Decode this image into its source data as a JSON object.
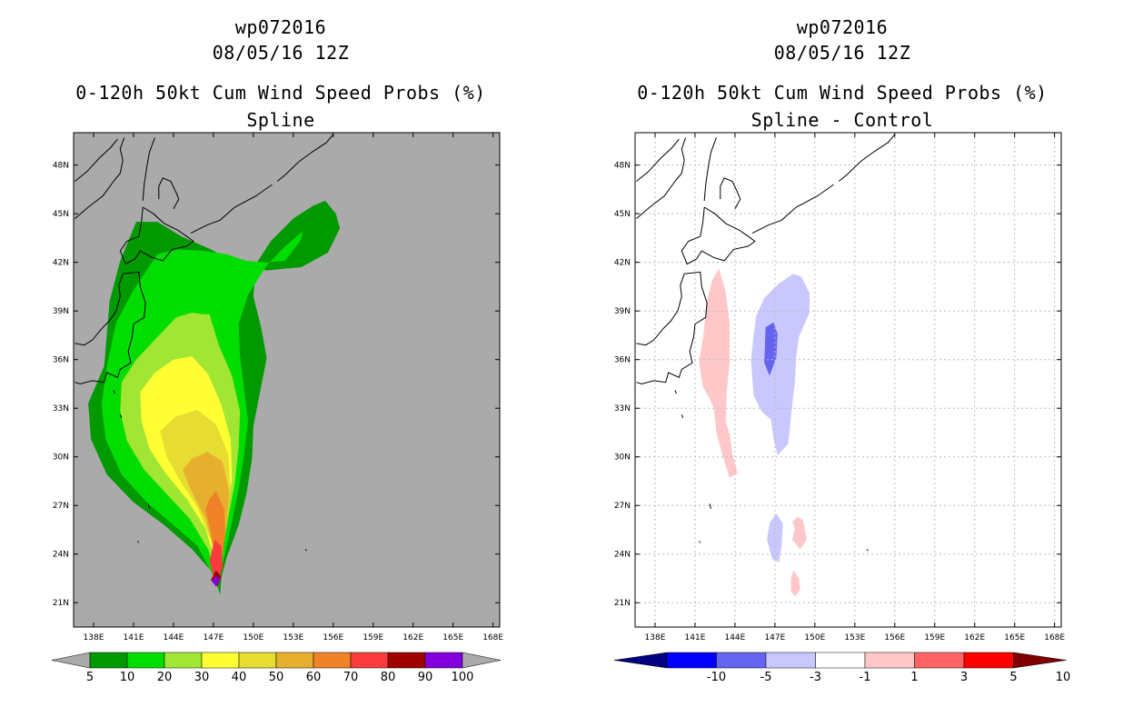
{
  "chart_data": [
    {
      "type": "heatmap",
      "storm_id": "wp072016",
      "datetime": "08/05/16 12Z",
      "title": "0-120h 50kt Cum Wind Speed Probs (%)",
      "subtitle": "Spline",
      "x_ticks": [
        "138E",
        "141E",
        "144E",
        "147E",
        "150E",
        "153E",
        "156E",
        "159E",
        "162E",
        "165E",
        "168E"
      ],
      "y_ticks": [
        "21N",
        "24N",
        "27N",
        "30N",
        "33N",
        "36N",
        "39N",
        "42N",
        "45N",
        "48N"
      ],
      "xlim": [
        136.5,
        168.5
      ],
      "ylim": [
        19.5,
        50
      ],
      "grid": false,
      "background_color": "#aaaaaa",
      "colorbar": {
        "labels": [
          "5",
          "10",
          "20",
          "30",
          "40",
          "50",
          "60",
          "70",
          "80",
          "90",
          "100"
        ],
        "colors": [
          "#009900",
          "#00dd00",
          "#a0e632",
          "#ffff33",
          "#e6dc32",
          "#e6af2d",
          "#f08228",
          "#fa3c3c",
          "#a00000",
          "#8200dc"
        ]
      },
      "contours": [
        {
          "level": 5,
          "color": "#009900",
          "lon": [
            138.8,
            137.6,
            137.8,
            139.0,
            141.0,
            143.3,
            145.4,
            147.0,
            147.5,
            147.6,
            148.0,
            148.9,
            149.5,
            149.9,
            150.0,
            150.5,
            151.0,
            150.6,
            150.0,
            150.2,
            151.3,
            153.0,
            154.5,
            155.4,
            156.2,
            156.5,
            155.6,
            153.6,
            151.0,
            148.8,
            146.8,
            144.6,
            142.8,
            141.2,
            140.0,
            139.2
          ],
          "lat": [
            35.6,
            33.3,
            31.1,
            28.9,
            27.2,
            25.8,
            24.3,
            22.8,
            21.5,
            22.6,
            23.8,
            25.8,
            27.8,
            29.9,
            31.9,
            34.0,
            36.1,
            37.9,
            39.9,
            41.9,
            43.3,
            44.7,
            45.5,
            45.8,
            45.0,
            44.1,
            42.6,
            41.7,
            41.5,
            41.9,
            42.8,
            43.6,
            44.5,
            44.5,
            42.1,
            39.6
          ]
        },
        {
          "level": 10,
          "color": "#00dd00",
          "lon": [
            139.0,
            138.6,
            138.9,
            140.1,
            142.0,
            144.0,
            145.8,
            146.9,
            147.4,
            147.5,
            147.9,
            148.4,
            148.9,
            149.3,
            149.6,
            149.3,
            149.0,
            148.9,
            149.6,
            151.0,
            152.4,
            153.7,
            153.6,
            152.4,
            151.0,
            149.4,
            148.0,
            146.4,
            144.4,
            142.8,
            141.0,
            139.7
          ],
          "lat": [
            35.6,
            33.2,
            31.1,
            28.9,
            27.2,
            25.8,
            24.5,
            22.8,
            22.0,
            22.8,
            24.1,
            26.0,
            28.0,
            30.1,
            32.2,
            34.2,
            36.2,
            38.2,
            40.0,
            41.8,
            43.0,
            43.9,
            43.4,
            42.1,
            42.0,
            42.1,
            42.5,
            42.7,
            42.8,
            42.5,
            40.3,
            38.3
          ]
        },
        {
          "level": 20,
          "color": "#a0e632",
          "lon": [
            140.1,
            140.0,
            140.5,
            141.8,
            143.5,
            145.2,
            146.6,
            147.3,
            147.4,
            147.7,
            148.1,
            148.6,
            148.9,
            149.0,
            148.4,
            147.4,
            146.7,
            146.2,
            145.4,
            144.2,
            142.8,
            141.2
          ],
          "lat": [
            34.6,
            32.8,
            31.0,
            29.2,
            27.7,
            26.2,
            24.3,
            22.5,
            22.7,
            24.2,
            26.2,
            28.3,
            30.6,
            32.8,
            35.0,
            36.9,
            38.8,
            38.8,
            38.9,
            38.6,
            37.4,
            36.0
          ]
        },
        {
          "level": 30,
          "color": "#ffff33",
          "lon": [
            141.5,
            141.6,
            142.2,
            143.4,
            145.0,
            146.4,
            147.2,
            147.4,
            147.7,
            148.0,
            148.4,
            148.3,
            147.6,
            146.6,
            145.4,
            144.0,
            142.6
          ],
          "lat": [
            34.0,
            32.2,
            30.5,
            29.0,
            27.4,
            25.6,
            23.4,
            22.4,
            24.1,
            26.3,
            28.7,
            31.1,
            33.2,
            35.1,
            36.2,
            36.0,
            35.2
          ]
        },
        {
          "level": 40,
          "color": "#e6dc32",
          "lon": [
            143.0,
            143.5,
            144.5,
            145.8,
            146.8,
            147.2,
            147.6,
            148.0,
            148.3,
            148.1,
            147.2,
            145.8,
            144.2
          ],
          "lat": [
            31.6,
            30.0,
            28.5,
            26.9,
            24.9,
            22.9,
            23.8,
            25.8,
            28.0,
            30.2,
            32.0,
            32.9,
            32.5
          ]
        },
        {
          "level": 50,
          "color": "#e6af2d",
          "lon": [
            144.7,
            145.4,
            146.4,
            147.0,
            147.3,
            147.7,
            148.0,
            148.2,
            147.7,
            146.6,
            145.4
          ],
          "lat": [
            29.2,
            27.8,
            26.2,
            24.4,
            22.9,
            24.2,
            26.0,
            27.8,
            29.7,
            30.3,
            29.9
          ]
        },
        {
          "level": 60,
          "color": "#f08228",
          "lon": [
            146.4,
            146.8,
            147.1,
            147.4,
            147.7,
            147.9,
            147.8,
            147.2,
            146.7
          ],
          "lat": [
            26.7,
            25.4,
            23.8,
            22.8,
            24.0,
            25.4,
            26.8,
            27.9,
            27.4
          ]
        },
        {
          "level": 70,
          "color": "#fa3c3c",
          "lon": [
            146.7,
            147.0,
            147.4,
            147.7,
            147.6,
            147.1
          ],
          "lat": [
            23.6,
            22.6,
            22.4,
            23.2,
            24.5,
            24.9
          ]
        },
        {
          "level": 80,
          "color": "#a00000",
          "lon": [
            146.8,
            147.3,
            147.6,
            147.2
          ],
          "lat": [
            22.4,
            22.0,
            22.6,
            23.0
          ]
        },
        {
          "level": 90,
          "color": "#8200dc",
          "lon": [
            146.9,
            147.2,
            147.5,
            147.2
          ],
          "lat": [
            22.3,
            22.0,
            22.4,
            22.7
          ]
        }
      ]
    },
    {
      "type": "heatmap",
      "storm_id": "wp072016",
      "datetime": "08/05/16 12Z",
      "title": "0-120h 50kt Cum Wind Speed Probs (%)",
      "subtitle": "Spline - Control",
      "x_ticks": [
        "138E",
        "141E",
        "144E",
        "147E",
        "150E",
        "153E",
        "156E",
        "159E",
        "162E",
        "165E",
        "168E"
      ],
      "y_ticks": [
        "21N",
        "24N",
        "27N",
        "30N",
        "33N",
        "36N",
        "39N",
        "42N",
        "45N",
        "48N"
      ],
      "xlim": [
        136.5,
        168.5
      ],
      "ylim": [
        19.5,
        50
      ],
      "grid": true,
      "background_color": "#ffffff",
      "colorbar": {
        "labels": [
          "-10",
          "-5",
          "-3",
          "-1",
          "1",
          "3",
          "5",
          "10"
        ],
        "colors": [
          "#000080",
          "#0000ff",
          "#6464f0",
          "#c8c8ff",
          "#ffffff",
          "#ffc8c8",
          "#ff6464",
          "#ff0000",
          "#800000"
        ]
      },
      "contours": [
        {
          "level": 1,
          "color": "#ffc8c8",
          "lon": [
            142.8,
            143.3,
            143.6,
            143.6,
            143.4,
            143.3,
            143.6,
            143.8,
            144.2,
            143.6,
            143.1,
            142.6,
            142.4,
            142.1,
            141.6,
            141.3,
            141.6,
            141.9,
            142.3
          ],
          "lat": [
            41.6,
            40.2,
            38.2,
            35.8,
            34.2,
            32.2,
            31.4,
            30.2,
            29.0,
            28.7,
            30.0,
            31.5,
            33.0,
            33.6,
            34.3,
            35.9,
            37.3,
            39.6,
            40.9
          ]
        },
        {
          "level": 1,
          "color": "#ffc8c8",
          "lon": [
            148.7,
            149.1,
            149.4,
            148.9,
            148.3,
            148.5,
            148.3
          ],
          "lat": [
            26.3,
            26.1,
            24.9,
            24.3,
            24.9,
            25.6,
            26.0
          ]
        },
        {
          "level": 1,
          "color": "#ffc8c8",
          "lon": [
            148.4,
            148.8,
            148.9,
            148.5,
            148.2,
            148.2
          ],
          "lat": [
            23.0,
            22.5,
            21.8,
            21.4,
            21.7,
            22.5
          ]
        },
        {
          "level": -1,
          "color": "#c8c8ff",
          "lon": [
            147.3,
            148.4,
            149.0,
            149.6,
            149.6,
            148.8,
            148.6,
            148.5,
            148.3,
            148.0,
            147.2,
            146.9,
            146.7,
            146.0,
            145.4,
            145.2,
            145.4,
            145.6,
            146.2
          ],
          "lat": [
            40.7,
            41.3,
            41.1,
            40.1,
            38.9,
            37.4,
            36.2,
            34.6,
            33.2,
            30.8,
            30.1,
            31.1,
            32.3,
            32.8,
            33.8,
            35.9,
            37.5,
            38.7,
            39.8
          ]
        },
        {
          "level": -1,
          "color": "#c8c8ff",
          "lon": [
            146.6,
            147.1,
            147.6,
            147.5,
            147.3,
            146.8,
            146.4
          ],
          "lat": [
            25.9,
            26.5,
            25.9,
            24.5,
            23.5,
            23.7,
            24.9
          ]
        },
        {
          "level": -3,
          "color": "#6464f0",
          "lon": [
            146.3,
            146.9,
            147.2,
            147.1,
            146.6,
            146.2
          ],
          "lat": [
            38.0,
            38.3,
            37.6,
            36.1,
            35.0,
            35.8
          ]
        }
      ]
    }
  ]
}
